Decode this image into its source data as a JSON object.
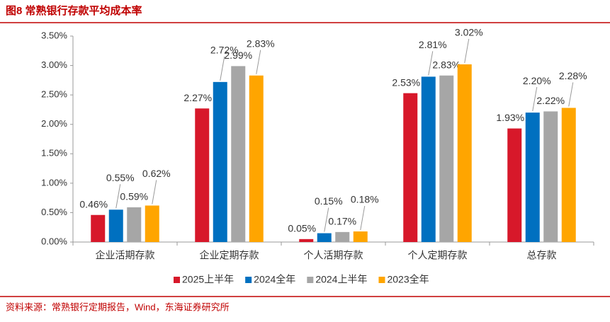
{
  "chart_data": {
    "type": "bar",
    "title": "图8 常熟银行存款平均成本率",
    "source": "资料来源：常熟银行定期报告，Wind，东海证券研究所",
    "categories": [
      "企业活期存款",
      "企业定期存款",
      "个人活期存款",
      "个人定期存款",
      "总存款"
    ],
    "series": [
      {
        "name": "2025上半年",
        "color": "#d7182a",
        "values": [
          0.46,
          2.27,
          0.05,
          2.53,
          1.93
        ],
        "value_labels": [
          "0.46%",
          "2.27%",
          "0.05%",
          "2.53%",
          "1.93%"
        ]
      },
      {
        "name": "2024全年",
        "color": "#0070c0",
        "values": [
          0.55,
          2.72,
          0.15,
          2.81,
          2.2
        ],
        "value_labels": [
          "0.55%",
          "2.72%",
          "0.15%",
          "2.81%",
          "2.20%"
        ]
      },
      {
        "name": "2024上半年",
        "color": "#a6a6a6",
        "values": [
          0.59,
          2.99,
          0.17,
          2.83,
          2.22
        ],
        "value_labels": [
          "0.59%",
          "2.99%",
          "0.17%",
          "2.83%",
          "2.22%"
        ]
      },
      {
        "name": "2023全年",
        "color": "#ffa500",
        "values": [
          0.62,
          2.83,
          0.18,
          3.02,
          2.28
        ],
        "value_labels": [
          "0.62%",
          "2.83%",
          "0.18%",
          "3.02%",
          "2.28%"
        ]
      }
    ],
    "ylim": [
      0,
      3.5
    ],
    "yticks": [
      {
        "value": 0,
        "label": "0.00%"
      },
      {
        "value": 0.5,
        "label": "0.50%"
      },
      {
        "value": 1,
        "label": "1.00%"
      },
      {
        "value": 1.5,
        "label": "1.50%"
      },
      {
        "value": 2,
        "label": "2.00%"
      },
      {
        "value": 2.5,
        "label": "2.50%"
      },
      {
        "value": 3,
        "label": "3.00%"
      },
      {
        "value": 3.5,
        "label": "3.50%"
      }
    ],
    "grid": false
  }
}
